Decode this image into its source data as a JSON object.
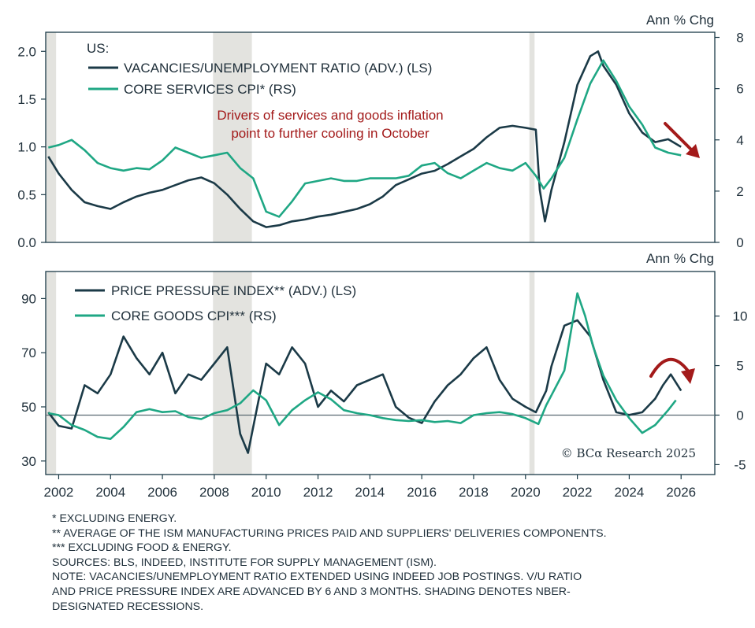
{
  "chart_data": [
    {
      "type": "line",
      "panel": "top",
      "region_label": "US:",
      "right_axis_title": "Ann % Chg",
      "left_ylim": [
        0,
        2.2
      ],
      "right_ylim": [
        0,
        8.2
      ],
      "left_ticks": [
        "0.0",
        "0.5",
        "1.0",
        "1.5",
        "2.0"
      ],
      "right_ticks": [
        "0",
        "2",
        "4",
        "6",
        "8"
      ],
      "legend": [
        "VACANCIES/UNEMPLOYMENT RATIO (ADV.) (LS)",
        "CORE SERVICES CPI* (RS)"
      ],
      "annotation": [
        "Drivers of services and goods inflation",
        "point to further cooling in October"
      ],
      "colors": {
        "vu": "#1b3a47",
        "cpi": "#1fa784",
        "annotation": "#a31a1a"
      },
      "series": [
        {
          "name": "VACANCIES/UNEMPLOYMENT RATIO (ADV.) (LS)",
          "axis": "left",
          "points": [
            [
              2001.6,
              0.9
            ],
            [
              2002.0,
              0.72
            ],
            [
              2002.5,
              0.55
            ],
            [
              2003.0,
              0.42
            ],
            [
              2003.5,
              0.38
            ],
            [
              2004.0,
              0.35
            ],
            [
              2004.5,
              0.42
            ],
            [
              2005.0,
              0.48
            ],
            [
              2005.5,
              0.52
            ],
            [
              2006.0,
              0.55
            ],
            [
              2006.5,
              0.6
            ],
            [
              2007.0,
              0.65
            ],
            [
              2007.5,
              0.68
            ],
            [
              2008.0,
              0.62
            ],
            [
              2008.5,
              0.5
            ],
            [
              2009.0,
              0.35
            ],
            [
              2009.5,
              0.22
            ],
            [
              2010.0,
              0.16
            ],
            [
              2010.5,
              0.18
            ],
            [
              2011.0,
              0.22
            ],
            [
              2011.5,
              0.24
            ],
            [
              2012.0,
              0.27
            ],
            [
              2012.5,
              0.29
            ],
            [
              2013.0,
              0.32
            ],
            [
              2013.5,
              0.35
            ],
            [
              2014.0,
              0.4
            ],
            [
              2014.5,
              0.48
            ],
            [
              2015.0,
              0.6
            ],
            [
              2015.5,
              0.66
            ],
            [
              2016.0,
              0.72
            ],
            [
              2016.5,
              0.75
            ],
            [
              2017.0,
              0.82
            ],
            [
              2017.5,
              0.9
            ],
            [
              2018.0,
              0.98
            ],
            [
              2018.5,
              1.1
            ],
            [
              2019.0,
              1.2
            ],
            [
              2019.5,
              1.22
            ],
            [
              2020.0,
              1.2
            ],
            [
              2020.4,
              1.18
            ],
            [
              2020.55,
              0.55
            ],
            [
              2020.75,
              0.22
            ],
            [
              2021.0,
              0.55
            ],
            [
              2021.5,
              1.05
            ],
            [
              2022.0,
              1.65
            ],
            [
              2022.5,
              1.95
            ],
            [
              2022.8,
              2.0
            ],
            [
              2023.0,
              1.85
            ],
            [
              2023.5,
              1.65
            ],
            [
              2024.0,
              1.35
            ],
            [
              2024.5,
              1.15
            ],
            [
              2025.0,
              1.05
            ],
            [
              2025.5,
              1.08
            ],
            [
              2026.0,
              1.0
            ]
          ]
        },
        {
          "name": "CORE SERVICES CPI* (RS)",
          "axis": "right",
          "points": [
            [
              2001.6,
              3.7
            ],
            [
              2002.0,
              3.8
            ],
            [
              2002.5,
              4.0
            ],
            [
              2003.0,
              3.6
            ],
            [
              2003.5,
              3.1
            ],
            [
              2004.0,
              2.9
            ],
            [
              2004.5,
              2.8
            ],
            [
              2005.0,
              2.9
            ],
            [
              2005.5,
              2.85
            ],
            [
              2006.0,
              3.2
            ],
            [
              2006.5,
              3.7
            ],
            [
              2007.0,
              3.5
            ],
            [
              2007.5,
              3.3
            ],
            [
              2008.0,
              3.4
            ],
            [
              2008.5,
              3.5
            ],
            [
              2009.0,
              2.9
            ],
            [
              2009.5,
              2.5
            ],
            [
              2010.0,
              1.2
            ],
            [
              2010.5,
              1.0
            ],
            [
              2011.0,
              1.6
            ],
            [
              2011.5,
              2.3
            ],
            [
              2012.0,
              2.4
            ],
            [
              2012.5,
              2.5
            ],
            [
              2013.0,
              2.4
            ],
            [
              2013.5,
              2.4
            ],
            [
              2014.0,
              2.5
            ],
            [
              2014.5,
              2.5
            ],
            [
              2015.0,
              2.5
            ],
            [
              2015.5,
              2.6
            ],
            [
              2016.0,
              3.0
            ],
            [
              2016.5,
              3.1
            ],
            [
              2017.0,
              2.7
            ],
            [
              2017.5,
              2.5
            ],
            [
              2018.0,
              2.8
            ],
            [
              2018.5,
              3.1
            ],
            [
              2019.0,
              2.9
            ],
            [
              2019.5,
              2.8
            ],
            [
              2020.0,
              3.1
            ],
            [
              2020.4,
              2.6
            ],
            [
              2020.7,
              2.1
            ],
            [
              2021.0,
              2.5
            ],
            [
              2021.5,
              3.3
            ],
            [
              2022.0,
              4.8
            ],
            [
              2022.5,
              6.2
            ],
            [
              2023.0,
              7.1
            ],
            [
              2023.5,
              6.3
            ],
            [
              2024.0,
              5.3
            ],
            [
              2024.5,
              4.6
            ],
            [
              2025.0,
              3.7
            ],
            [
              2025.5,
              3.5
            ],
            [
              2026.0,
              3.4
            ]
          ]
        }
      ]
    },
    {
      "type": "line",
      "panel": "bottom",
      "right_axis_title": "Ann % Chg",
      "left_ylim": [
        25,
        100
      ],
      "right_ylim": [
        -6,
        14.5
      ],
      "left_ticks": [
        "30",
        "50",
        "70",
        "90"
      ],
      "right_ticks": [
        "-5",
        "0",
        "5",
        "10"
      ],
      "legend": [
        "PRICE PRESSURE INDEX** (ADV.) (LS)",
        "CORE GOODS CPI*** (RS)"
      ],
      "colors": {
        "ppi": "#1b3a47",
        "goods": "#1fa784",
        "zero_line": "#5a6a72"
      },
      "series": [
        {
          "name": "PRICE PRESSURE INDEX** (ADV.) (LS)",
          "axis": "left",
          "points": [
            [
              2001.6,
              48
            ],
            [
              2002.0,
              43
            ],
            [
              2002.5,
              42
            ],
            [
              2003.0,
              58
            ],
            [
              2003.5,
              55
            ],
            [
              2004.0,
              62
            ],
            [
              2004.5,
              76
            ],
            [
              2005.0,
              68
            ],
            [
              2005.5,
              62
            ],
            [
              2006.0,
              70
            ],
            [
              2006.5,
              55
            ],
            [
              2007.0,
              62
            ],
            [
              2007.5,
              60
            ],
            [
              2008.0,
              66
            ],
            [
              2008.5,
              72
            ],
            [
              2009.0,
              40
            ],
            [
              2009.3,
              33
            ],
            [
              2009.7,
              52
            ],
            [
              2010.0,
              66
            ],
            [
              2010.5,
              62
            ],
            [
              2011.0,
              72
            ],
            [
              2011.5,
              66
            ],
            [
              2012.0,
              50
            ],
            [
              2012.5,
              56
            ],
            [
              2013.0,
              52
            ],
            [
              2013.5,
              58
            ],
            [
              2014.0,
              60
            ],
            [
              2014.5,
              62
            ],
            [
              2015.0,
              50
            ],
            [
              2015.5,
              46
            ],
            [
              2016.0,
              44
            ],
            [
              2016.5,
              52
            ],
            [
              2017.0,
              58
            ],
            [
              2017.5,
              62
            ],
            [
              2018.0,
              68
            ],
            [
              2018.5,
              72
            ],
            [
              2019.0,
              60
            ],
            [
              2019.5,
              53
            ],
            [
              2020.0,
              50
            ],
            [
              2020.4,
              48
            ],
            [
              2020.8,
              56
            ],
            [
              2021.0,
              65
            ],
            [
              2021.5,
              80
            ],
            [
              2022.0,
              82
            ],
            [
              2022.5,
              76
            ],
            [
              2023.0,
              60
            ],
            [
              2023.5,
              48
            ],
            [
              2024.0,
              47
            ],
            [
              2024.5,
              48
            ],
            [
              2025.0,
              53
            ],
            [
              2025.3,
              58
            ],
            [
              2025.6,
              62
            ],
            [
              2026.0,
              56
            ]
          ]
        },
        {
          "name": "CORE GOODS CPI*** (RS)",
          "axis": "right",
          "points": [
            [
              2001.6,
              0.2
            ],
            [
              2002.0,
              0
            ],
            [
              2002.5,
              -1
            ],
            [
              2003.0,
              -1.5
            ],
            [
              2003.5,
              -2.2
            ],
            [
              2004.0,
              -2.4
            ],
            [
              2004.5,
              -1.2
            ],
            [
              2005.0,
              0.3
            ],
            [
              2005.5,
              0.6
            ],
            [
              2006.0,
              0.3
            ],
            [
              2006.5,
              0.4
            ],
            [
              2007.0,
              -0.2
            ],
            [
              2007.5,
              -0.4
            ],
            [
              2008.0,
              0.2
            ],
            [
              2008.5,
              0.5
            ],
            [
              2009.0,
              1.2
            ],
            [
              2009.5,
              2.5
            ],
            [
              2010.0,
              1.5
            ],
            [
              2010.5,
              -1.0
            ],
            [
              2011.0,
              0.5
            ],
            [
              2011.5,
              1.5
            ],
            [
              2012.0,
              2.3
            ],
            [
              2012.5,
              1.6
            ],
            [
              2013.0,
              0.5
            ],
            [
              2013.5,
              0.2
            ],
            [
              2014.0,
              0
            ],
            [
              2014.5,
              -0.3
            ],
            [
              2015.0,
              -0.5
            ],
            [
              2015.5,
              -0.6
            ],
            [
              2016.0,
              -0.5
            ],
            [
              2016.5,
              -0.7
            ],
            [
              2017.0,
              -0.6
            ],
            [
              2017.5,
              -0.8
            ],
            [
              2018.0,
              0
            ],
            [
              2018.5,
              0.2
            ],
            [
              2019.0,
              0.3
            ],
            [
              2019.5,
              0.1
            ],
            [
              2020.0,
              -0.3
            ],
            [
              2020.5,
              -0.9
            ],
            [
              2020.8,
              1.0
            ],
            [
              2021.0,
              2.0
            ],
            [
              2021.5,
              4.5
            ],
            [
              2022.0,
              12.3
            ],
            [
              2022.3,
              10.0
            ],
            [
              2022.6,
              7.0
            ],
            [
              2023.0,
              4.0
            ],
            [
              2023.5,
              1.5
            ],
            [
              2024.0,
              -0.3
            ],
            [
              2024.5,
              -1.8
            ],
            [
              2025.0,
              -1.0
            ],
            [
              2025.5,
              0.5
            ],
            [
              2025.8,
              1.5
            ]
          ]
        }
      ]
    }
  ],
  "x_axis": {
    "ticks": [
      "2002",
      "2004",
      "2006",
      "2008",
      "2010",
      "2012",
      "2014",
      "2016",
      "2018",
      "2020",
      "2022",
      "2024",
      "2026"
    ],
    "range": [
      2001.5,
      2027.3
    ]
  },
  "recessions": [
    [
      2001.5,
      2001.9
    ],
    [
      2007.95,
      2009.45
    ],
    [
      2020.15,
      2020.35
    ]
  ],
  "copyright": "© BCα Research 2025",
  "notes": [
    "* EXCLUDING ENERGY.",
    "** AVERAGE OF THE ISM MANUFACTURING PRICES PAID AND SUPPLIERS' DELIVERIES COMPONENTS.",
    "*** EXCLUDING FOOD & ENERGY.",
    "SOURCES: BLS, INDEED, INSTITUTE FOR SUPPLY MANAGEMENT (ISM).",
    "NOTE: VACANCIES/UNEMPLOYMENT RATIO EXTENDED USING INDEED JOB POSTINGS. V/U RATIO",
    "AND PRICE PRESSURE INDEX ARE ADVANCED BY 6 AND 3 MONTHS. SHADING DENOTES NBER-",
    "DESIGNATED RECESSIONS."
  ]
}
